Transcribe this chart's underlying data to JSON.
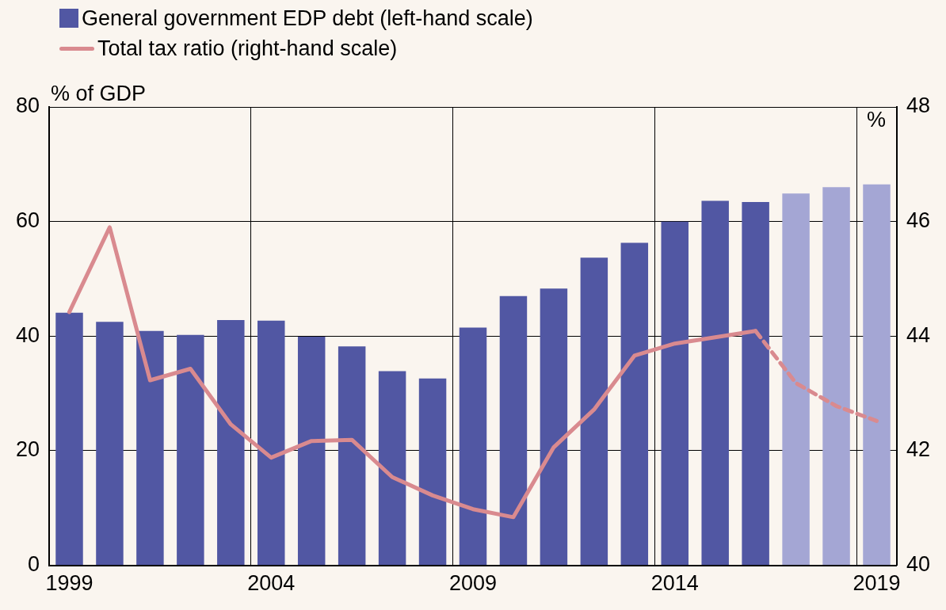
{
  "chart_data": {
    "type": "bar",
    "categories": [
      "1999",
      null,
      null,
      null,
      null,
      "2004",
      null,
      null,
      null,
      null,
      "2009",
      null,
      null,
      null,
      null,
      "2014",
      null,
      null,
      null,
      null,
      "2019"
    ],
    "series": [
      {
        "name": "General government EDP debt (left-hand scale)",
        "color": "#5157a3",
        "colors": [
          "#5157a3",
          "#5157a3",
          "#5157a3",
          "#5157a3",
          "#5157a3",
          "#5157a3",
          "#5157a3",
          "#5157a3",
          "#5157a3",
          "#5157a3",
          "#5157a3",
          "#5157a3",
          "#5157a3",
          "#5157a3",
          "#5157a3",
          "#5157a3",
          "#5157a3",
          "#5157a3",
          "#a4a6d4",
          "#a4a6d4",
          "#a4a6d4"
        ],
        "values": [
          44.1,
          42.5,
          40.9,
          40.2,
          42.8,
          42.7,
          39.9,
          38.2,
          33.9,
          32.6,
          41.5,
          47.0,
          48.3,
          53.7,
          56.3,
          60.0,
          63.6,
          63.4,
          64.9,
          66.0,
          66.5
        ]
      },
      {
        "name": "Total tax ratio (right-hand scale)",
        "type": "line",
        "axis": "y2",
        "color": "#d98a8f",
        "line_style": "solid",
        "values": [
          44.42,
          45.9,
          43.23,
          43.43,
          42.46,
          41.88,
          42.17,
          42.19,
          41.54,
          41.22,
          40.98,
          40.84,
          42.06,
          42.72,
          43.66,
          43.87,
          43.98,
          44.09,
          null,
          null,
          null
        ]
      },
      {
        "type": "line",
        "axis": "y2",
        "color": "#d98a8f",
        "line_style": "dashed",
        "values": [
          null,
          null,
          null,
          null,
          null,
          null,
          null,
          null,
          null,
          null,
          null,
          null,
          null,
          null,
          null,
          null,
          null,
          44.09,
          43.18,
          42.78,
          42.52
        ]
      }
    ],
    "ylabel": "% of GDP",
    "y2label": "%",
    "ylim": [
      0,
      80
    ],
    "yticks": [
      0,
      20,
      40,
      60,
      80
    ],
    "y2lim": [
      40,
      48
    ],
    "y2ticks": [
      40,
      42,
      44,
      46,
      48
    ],
    "grid": true,
    "legend": "top left",
    "marker": "none"
  }
}
